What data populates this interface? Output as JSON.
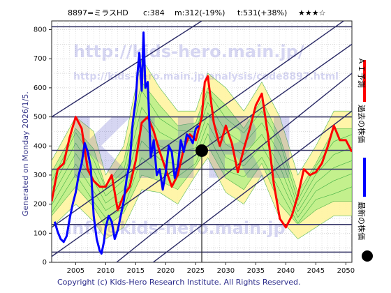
{
  "header": {
    "code": "8897=ミラスHD",
    "current": "c:384",
    "mid": "m:312(-19%)",
    "target": "t:531(+38%)",
    "stars": "★★★☆"
  },
  "generated": "Generated on Monday 2026/1/5.",
  "footer": "Copyright (c) Kids-Hero Research Institute. All Rights Reserved.",
  "watermarks": {
    "url1": "http://kids-hero.main.jp/",
    "url2": "http://kids-hero.main.jp/analysis/code8897.html",
    "big": "KHRI",
    "email": "info@kids-hero.main.jp"
  },
  "legend": {
    "ai": "ＡＩ予測",
    "past": "過去の株価",
    "latest": "最新の株価"
  },
  "colors": {
    "ai": "#ff0000",
    "past": "#0000ff",
    "latest": "#000000",
    "band_yellow": "#fff5a0",
    "band_green": "#bdf08a",
    "band_line": "#44b044",
    "grid": "#b8b8b8",
    "hline": "#3a3a6a",
    "diag": "#2b2b66"
  },
  "chart_data": {
    "type": "line",
    "xlim": [
      2001,
      2051
    ],
    "ylim": [
      0,
      830
    ],
    "x_ticks": [
      2005,
      2010,
      2015,
      2020,
      2025,
      2030,
      2035,
      2040,
      2045,
      2050
    ],
    "y_ticks": [
      0,
      100,
      200,
      300,
      400,
      500,
      600,
      700,
      800
    ],
    "horizontal_levels": [
      35,
      130,
      320,
      385,
      500,
      810
    ],
    "latest_point": {
      "x": 2026.0,
      "y": 384
    },
    "series": [
      {
        "name": "過去の株価",
        "color": "#0000ff",
        "x": [
          2001.5,
          2002.0,
          2002.5,
          2003.0,
          2003.5,
          2004.0,
          2004.5,
          2005.0,
          2005.5,
          2006.0,
          2006.5,
          2007.0,
          2007.5,
          2008.0,
          2008.5,
          2009.0,
          2009.3,
          2009.7,
          2010.0,
          2010.5,
          2011.0,
          2011.5,
          2012.0,
          2012.5,
          2013.0,
          2013.5,
          2014.0,
          2014.5,
          2015.0,
          2015.3,
          2015.6,
          2016.0,
          2016.3,
          2016.6,
          2017.0,
          2017.5,
          2018.0,
          2018.5,
          2019.0,
          2019.5,
          2020.0,
          2020.5,
          2021.0,
          2021.5,
          2022.0,
          2022.5,
          2023.0,
          2023.5,
          2024.0,
          2024.5,
          2025.0,
          2025.5
        ],
        "y": [
          140,
          105,
          80,
          70,
          90,
          150,
          200,
          240,
          300,
          340,
          410,
          380,
          330,
          160,
          80,
          40,
          30,
          70,
          120,
          160,
          140,
          80,
          110,
          160,
          210,
          290,
          340,
          480,
          560,
          650,
          720,
          590,
          790,
          600,
          620,
          360,
          420,
          300,
          320,
          250,
          310,
          400,
          380,
          290,
          330,
          420,
          380,
          440,
          430,
          410,
          460,
          470
        ]
      },
      {
        "name": "ＡＩ予測",
        "color": "#ff0000",
        "x": [
          2001.0,
          2002.0,
          2003.0,
          2004.0,
          2005.0,
          2006.0,
          2007.0,
          2008.0,
          2009.0,
          2010.0,
          2011.0,
          2012.0,
          2013.0,
          2014.0,
          2015.0,
          2016.0,
          2017.0,
          2018.0,
          2019.0,
          2020.0,
          2021.0,
          2022.0,
          2023.0,
          2024.0,
          2025.0,
          2026.0,
          2026.5,
          2027.0,
          2027.5,
          2028.0,
          2029.0,
          2030.0,
          2031.0,
          2032.0,
          2033.0,
          2034.0,
          2035.0,
          2036.0,
          2037.0,
          2038.0,
          2039.0,
          2040.0,
          2041.0,
          2042.0,
          2043.0,
          2044.0,
          2045.0,
          2046.0,
          2047.0,
          2048.0,
          2049.0,
          2050.0,
          2051.0
        ],
        "y": [
          210,
          320,
          340,
          430,
          500,
          460,
          320,
          280,
          260,
          260,
          300,
          180,
          230,
          260,
          350,
          480,
          500,
          450,
          380,
          320,
          260,
          300,
          390,
          440,
          420,
          500,
          620,
          640,
          560,
          480,
          400,
          470,
          410,
          310,
          390,
          460,
          540,
          580,
          440,
          270,
          150,
          120,
          160,
          230,
          320,
          300,
          310,
          340,
          400,
          470,
          420,
          420,
          380
        ]
      }
    ],
    "bands": [
      {
        "name": "band-yellow",
        "x": [
          2001,
          2005,
          2008,
          2010,
          2013,
          2016,
          2019,
          2022,
          2025,
          2027,
          2030,
          2033,
          2036,
          2039,
          2042,
          2045,
          2048,
          2051
        ],
        "low": [
          120,
          200,
          140,
          80,
          120,
          250,
          240,
          200,
          300,
          360,
          240,
          200,
          300,
          150,
          80,
          120,
          160,
          160
        ],
        "high": [
          350,
          500,
          450,
          300,
          400,
          700,
          600,
          520,
          520,
          650,
          600,
          520,
          620,
          500,
          300,
          400,
          520,
          520
        ]
      },
      {
        "name": "band-green",
        "x": [
          2001,
          2005,
          2008,
          2010,
          2013,
          2016,
          2019,
          2022,
          2025,
          2027,
          2030,
          2033,
          2036,
          2039,
          2042,
          2045,
          2048,
          2051
        ],
        "low": [
          160,
          260,
          190,
          120,
          170,
          300,
          280,
          250,
          330,
          400,
          290,
          250,
          340,
          200,
          130,
          180,
          210,
          210
        ],
        "high": [
          310,
          460,
          390,
          260,
          350,
          620,
          540,
          470,
          480,
          600,
          540,
          460,
          560,
          430,
          240,
          340,
          460,
          460
        ]
      }
    ],
    "diagonals": [
      {
        "from": [
          2001,
          120
        ],
        "to": [
          2051,
          850
        ]
      },
      {
        "from": [
          2001,
          20
        ],
        "to": [
          2051,
          750
        ]
      },
      {
        "from": [
          2010,
          -30
        ],
        "to": [
          2051,
          650
        ]
      },
      {
        "from": [
          2001,
          500
        ],
        "to": [
          2026,
          830
        ]
      },
      {
        "from": [
          2016,
          -30
        ],
        "to": [
          2051,
          520
        ]
      }
    ]
  }
}
